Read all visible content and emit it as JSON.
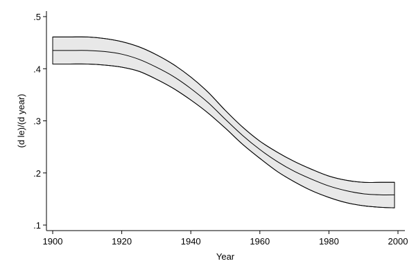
{
  "chart_data": {
    "type": "area",
    "xlabel": "Year",
    "ylabel": "(d le)/(d year)",
    "xlim": [
      1900,
      2000
    ],
    "ylim": [
      0.1,
      0.5
    ],
    "x_ticks": [
      {
        "value": 1900,
        "label": "1900"
      },
      {
        "value": 1920,
        "label": "1920"
      },
      {
        "value": 1940,
        "label": "1940"
      },
      {
        "value": 1960,
        "label": "1960"
      },
      {
        "value": 1980,
        "label": "1980"
      },
      {
        "value": 2000,
        "label": "2000"
      }
    ],
    "y_ticks": [
      {
        "value": 0.1,
        "label": ".1"
      },
      {
        "value": 0.2,
        "label": ".2"
      },
      {
        "value": 0.3,
        "label": ".3"
      },
      {
        "value": 0.4,
        "label": ".4"
      },
      {
        "value": 0.5,
        "label": ".5"
      }
    ],
    "grid": false,
    "legend": "none",
    "colors": {
      "band_fill": "#e8e8e8",
      "line": "#000000",
      "axis": "#000000"
    },
    "x": [
      1900,
      1905,
      1910,
      1915,
      1920,
      1925,
      1930,
      1935,
      1940,
      1945,
      1950,
      1955,
      1960,
      1965,
      1970,
      1975,
      1980,
      1985,
      1990,
      1995,
      1999
    ],
    "series": [
      {
        "role": "estimate",
        "values": [
          0.435,
          0.435,
          0.435,
          0.433,
          0.428,
          0.418,
          0.403,
          0.385,
          0.362,
          0.335,
          0.303,
          0.272,
          0.245,
          0.222,
          0.203,
          0.188,
          0.175,
          0.166,
          0.16,
          0.158,
          0.158
        ]
      },
      {
        "role": "upper",
        "values": [
          0.461,
          0.461,
          0.461,
          0.458,
          0.452,
          0.442,
          0.427,
          0.408,
          0.384,
          0.355,
          0.32,
          0.288,
          0.261,
          0.24,
          0.222,
          0.207,
          0.194,
          0.186,
          0.182,
          0.182,
          0.182
        ]
      },
      {
        "role": "lower",
        "values": [
          0.409,
          0.409,
          0.409,
          0.407,
          0.403,
          0.395,
          0.38,
          0.362,
          0.34,
          0.315,
          0.286,
          0.255,
          0.228,
          0.203,
          0.183,
          0.166,
          0.153,
          0.143,
          0.137,
          0.134,
          0.133
        ]
      }
    ]
  }
}
